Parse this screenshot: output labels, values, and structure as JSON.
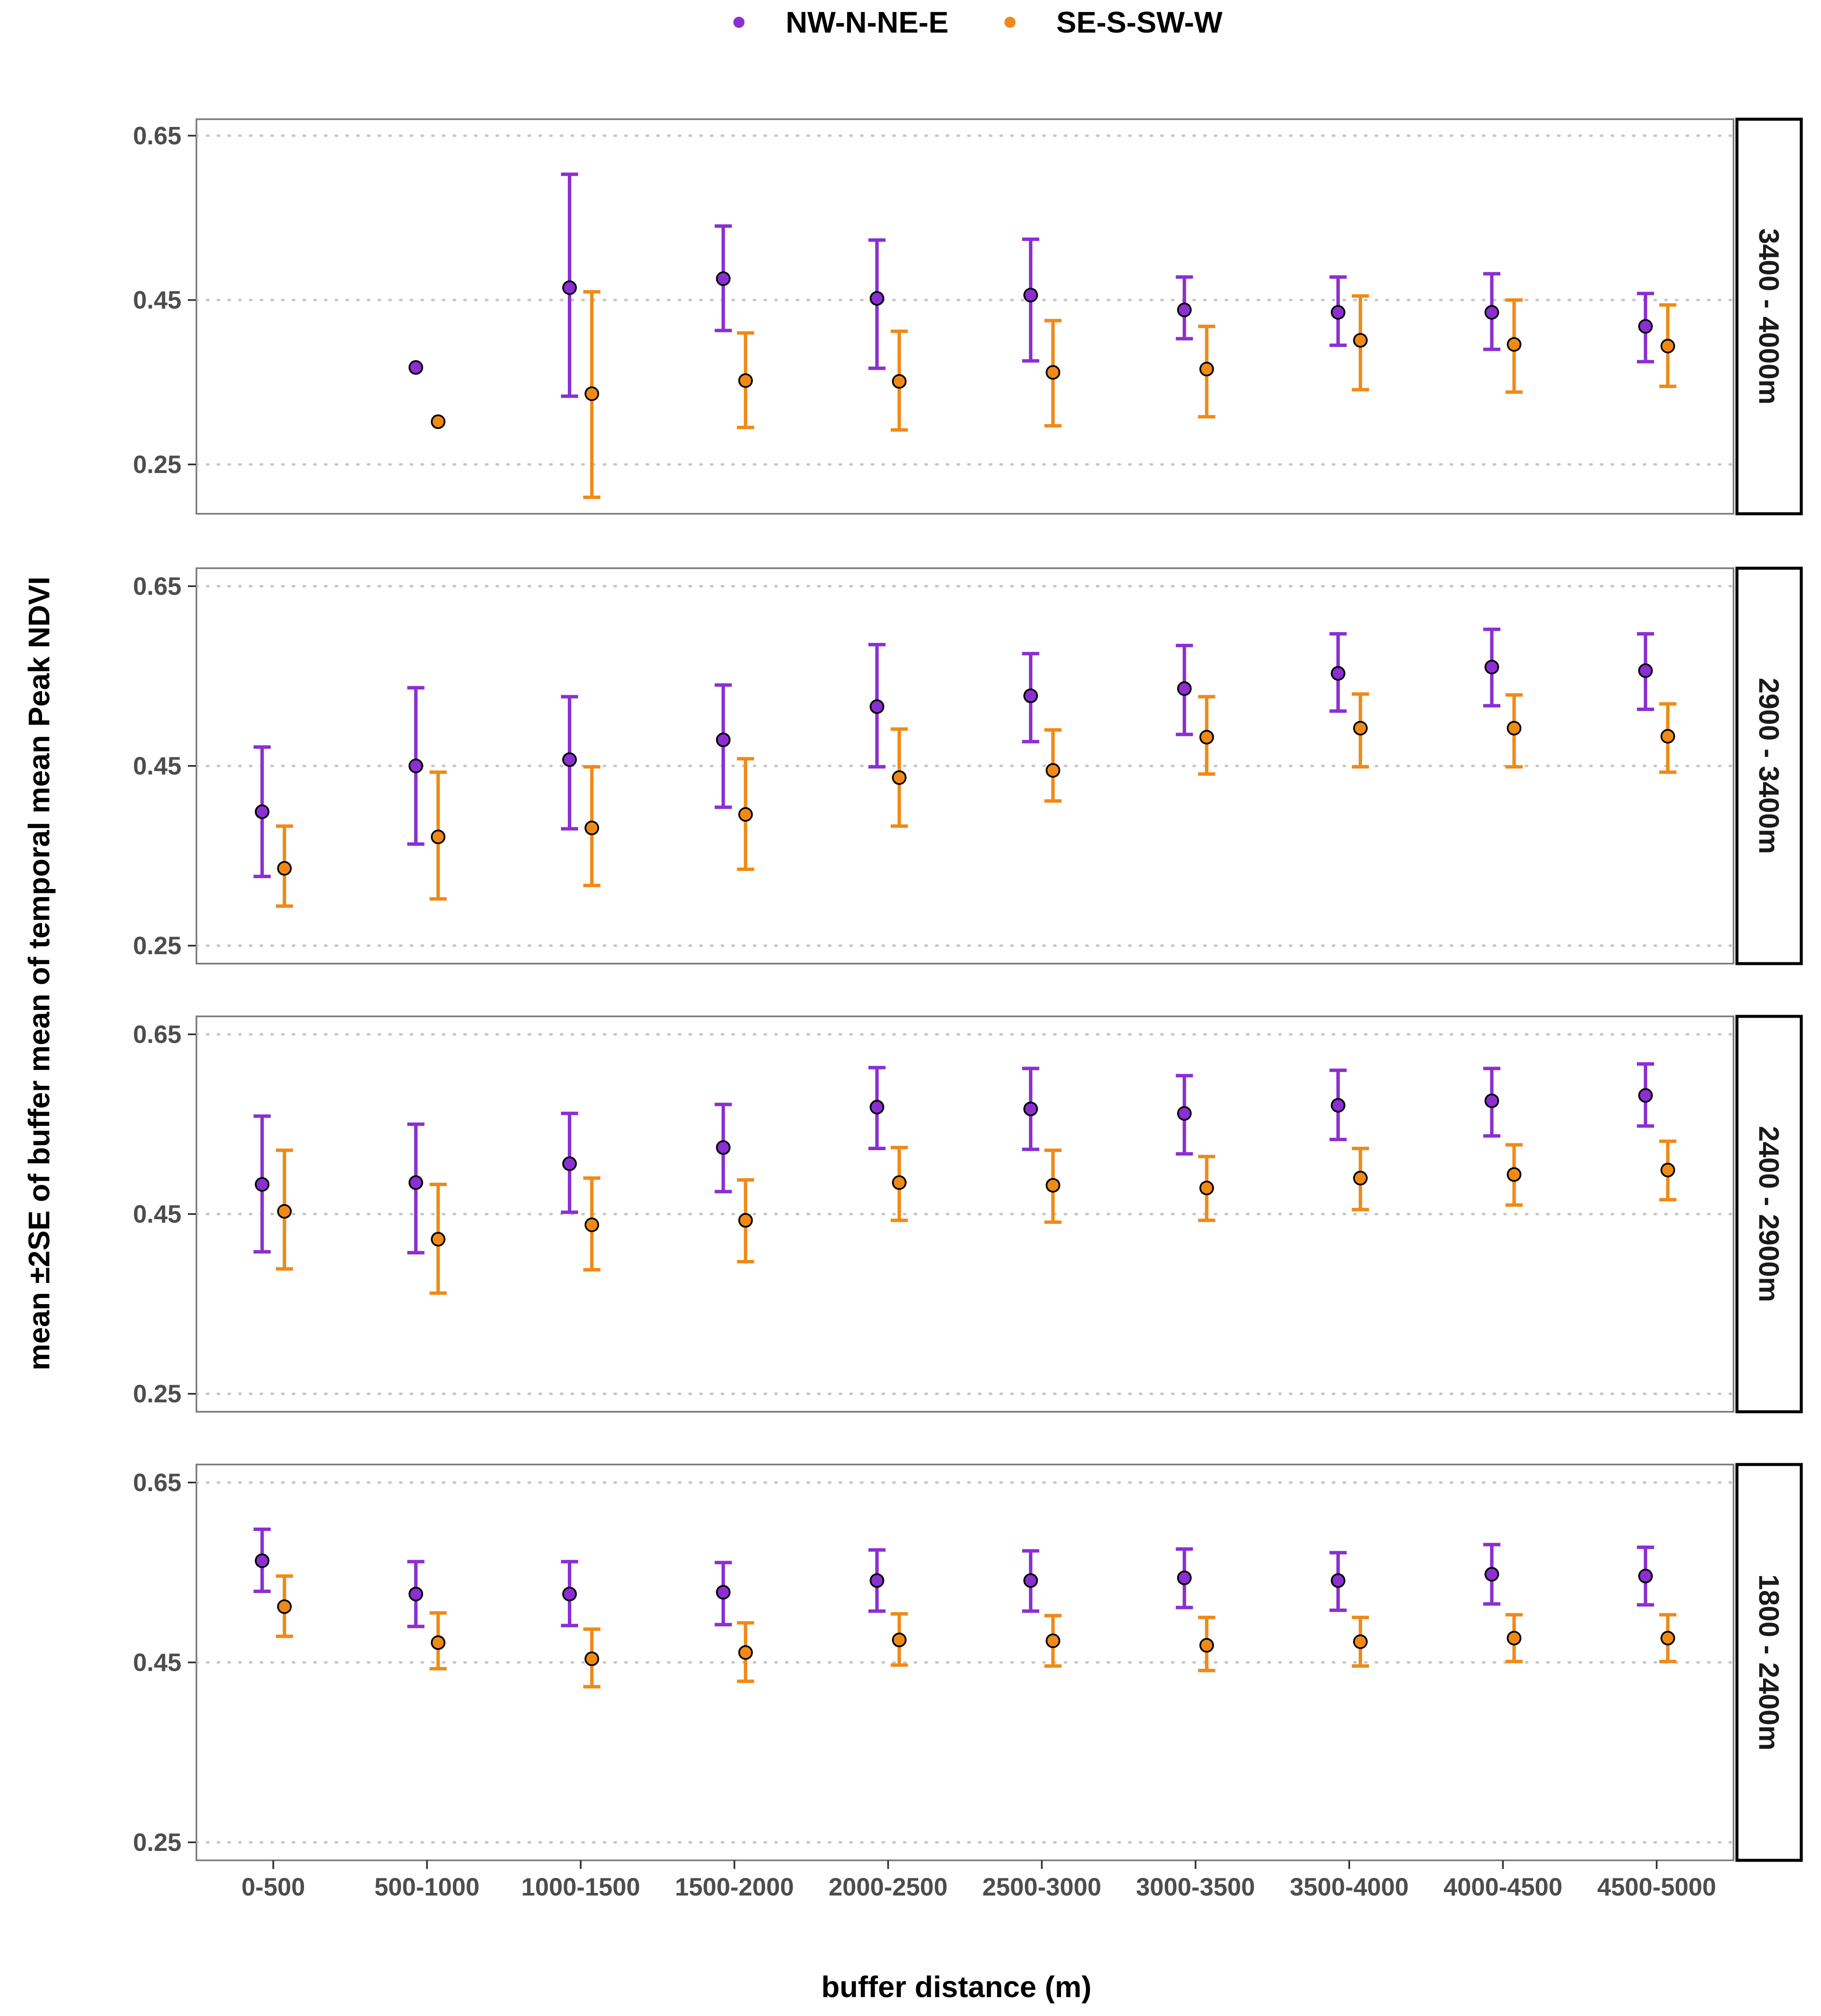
{
  "chart_data": {
    "type": "scatter",
    "subtype": "faceted point + error bar (mean ±2SE)",
    "legend": {
      "position": "top",
      "items": [
        "NW-N-NE-E",
        "SE-S-SW-W"
      ]
    },
    "colors": {
      "NW-N-NE-E": "#8b2fd1",
      "SE-S-SW-W": "#ef8a17"
    },
    "xlabel": "buffer distance (m)",
    "ylabel": "mean ±2SE of buffer mean of temporal mean Peak NDVI",
    "categories": [
      "0-500",
      "500-1000",
      "1000-1500",
      "1500-2000",
      "2000-2500",
      "2500-3000",
      "3000-3500",
      "3500-4000",
      "4000-4500",
      "4500-5000"
    ],
    "yticks": [
      "0.25",
      "0.45",
      "0.65"
    ],
    "grid": "horizontal dotted at y ticks",
    "facets": [
      {
        "label": "3400 - 4000m",
        "ylim": [
          0.19,
          0.67
        ],
        "series": [
          {
            "name": "NW-N-NE-E",
            "mean": [
              null,
              0.368,
              0.465,
              0.476,
              0.452,
              0.456,
              0.438,
              0.435,
              0.435,
              0.418
            ],
            "lower": [
              null,
              null,
              0.333,
              0.413,
              0.367,
              0.376,
              0.403,
              0.395,
              0.39,
              0.375
            ],
            "upper": [
              null,
              null,
              0.603,
              0.54,
              0.523,
              0.524,
              0.478,
              0.478,
              0.482,
              0.458
            ]
          },
          {
            "name": "SE-S-SW-W",
            "mean": [
              null,
              0.302,
              0.336,
              0.352,
              0.351,
              0.362,
              0.366,
              0.401,
              0.396,
              0.394
            ],
            "lower": [
              null,
              null,
              0.21,
              0.295,
              0.292,
              0.297,
              0.308,
              0.341,
              0.338,
              0.345
            ],
            "upper": [
              null,
              null,
              0.46,
              0.41,
              0.412,
              0.425,
              0.418,
              0.455,
              0.45,
              0.444
            ]
          }
        ]
      },
      {
        "label": "2900 - 3400m",
        "ylim": [
          0.23,
          0.67
        ],
        "series": [
          {
            "name": "NW-N-NE-E",
            "mean": [
              0.399,
              0.45,
              0.457,
              0.479,
              0.516,
              0.528,
              0.536,
              0.553,
              0.56,
              0.556
            ],
            "lower": [
              0.327,
              0.363,
              0.38,
              0.404,
              0.449,
              0.477,
              0.485,
              0.511,
              0.517,
              0.513
            ],
            "upper": [
              0.471,
              0.537,
              0.527,
              0.54,
              0.585,
              0.575,
              0.584,
              0.597,
              0.602,
              0.597
            ]
          },
          {
            "name": "SE-S-SW-W",
            "mean": [
              0.336,
              0.371,
              0.381,
              0.396,
              0.437,
              0.445,
              0.482,
              0.492,
              0.492,
              0.483
            ],
            "lower": [
              0.294,
              0.302,
              0.317,
              0.335,
              0.383,
              0.411,
              0.441,
              0.449,
              0.449,
              0.443
            ],
            "upper": [
              0.383,
              0.443,
              0.449,
              0.458,
              0.491,
              0.49,
              0.527,
              0.53,
              0.529,
              0.519
            ]
          }
        ]
      },
      {
        "label": "2400 - 2900m",
        "ylim": [
          0.23,
          0.67
        ],
        "series": [
          {
            "name": "NW-N-NE-E",
            "mean": [
              0.483,
              0.485,
              0.506,
              0.524,
              0.569,
              0.567,
              0.562,
              0.571,
              0.576,
              0.582
            ],
            "lower": [
              0.408,
              0.407,
              0.452,
              0.475,
              0.523,
              0.522,
              0.517,
              0.533,
              0.537,
              0.548
            ],
            "upper": [
              0.559,
              0.55,
              0.562,
              0.572,
              0.613,
              0.612,
              0.604,
              0.61,
              0.612,
              0.617
            ]
          },
          {
            "name": "SE-S-SW-W",
            "mean": [
              0.453,
              0.422,
              0.438,
              0.443,
              0.485,
              0.482,
              0.479,
              0.49,
              0.494,
              0.499
            ],
            "lower": [
              0.389,
              0.362,
              0.388,
              0.397,
              0.443,
              0.441,
              0.443,
              0.455,
              0.46,
              0.466
            ],
            "upper": [
              0.521,
              0.483,
              0.49,
              0.488,
              0.524,
              0.521,
              0.514,
              0.523,
              0.527,
              0.531
            ]
          }
        ]
      },
      {
        "label": "1800 - 2400m",
        "ylim": [
          0.23,
          0.67
        ],
        "series": [
          {
            "name": "NW-N-NE-E",
            "mean": [
              0.563,
              0.526,
              0.526,
              0.528,
              0.541,
              0.541,
              0.544,
              0.541,
              0.548,
              0.546
            ],
            "lower": [
              0.529,
              0.49,
              0.491,
              0.492,
              0.507,
              0.507,
              0.511,
              0.508,
              0.515,
              0.514
            ],
            "upper": [
              0.598,
              0.562,
              0.562,
              0.561,
              0.575,
              0.574,
              0.576,
              0.572,
              0.581,
              0.578
            ]
          },
          {
            "name": "SE-S-SW-W",
            "mean": [
              0.512,
              0.472,
              0.454,
              0.461,
              0.475,
              0.474,
              0.469,
              0.473,
              0.477,
              0.477
            ],
            "lower": [
              0.479,
              0.443,
              0.423,
              0.429,
              0.447,
              0.446,
              0.441,
              0.446,
              0.451,
              0.451
            ],
            "upper": [
              0.546,
              0.505,
              0.487,
              0.494,
              0.504,
              0.502,
              0.5,
              0.5,
              0.503,
              0.503
            ]
          }
        ]
      }
    ]
  }
}
